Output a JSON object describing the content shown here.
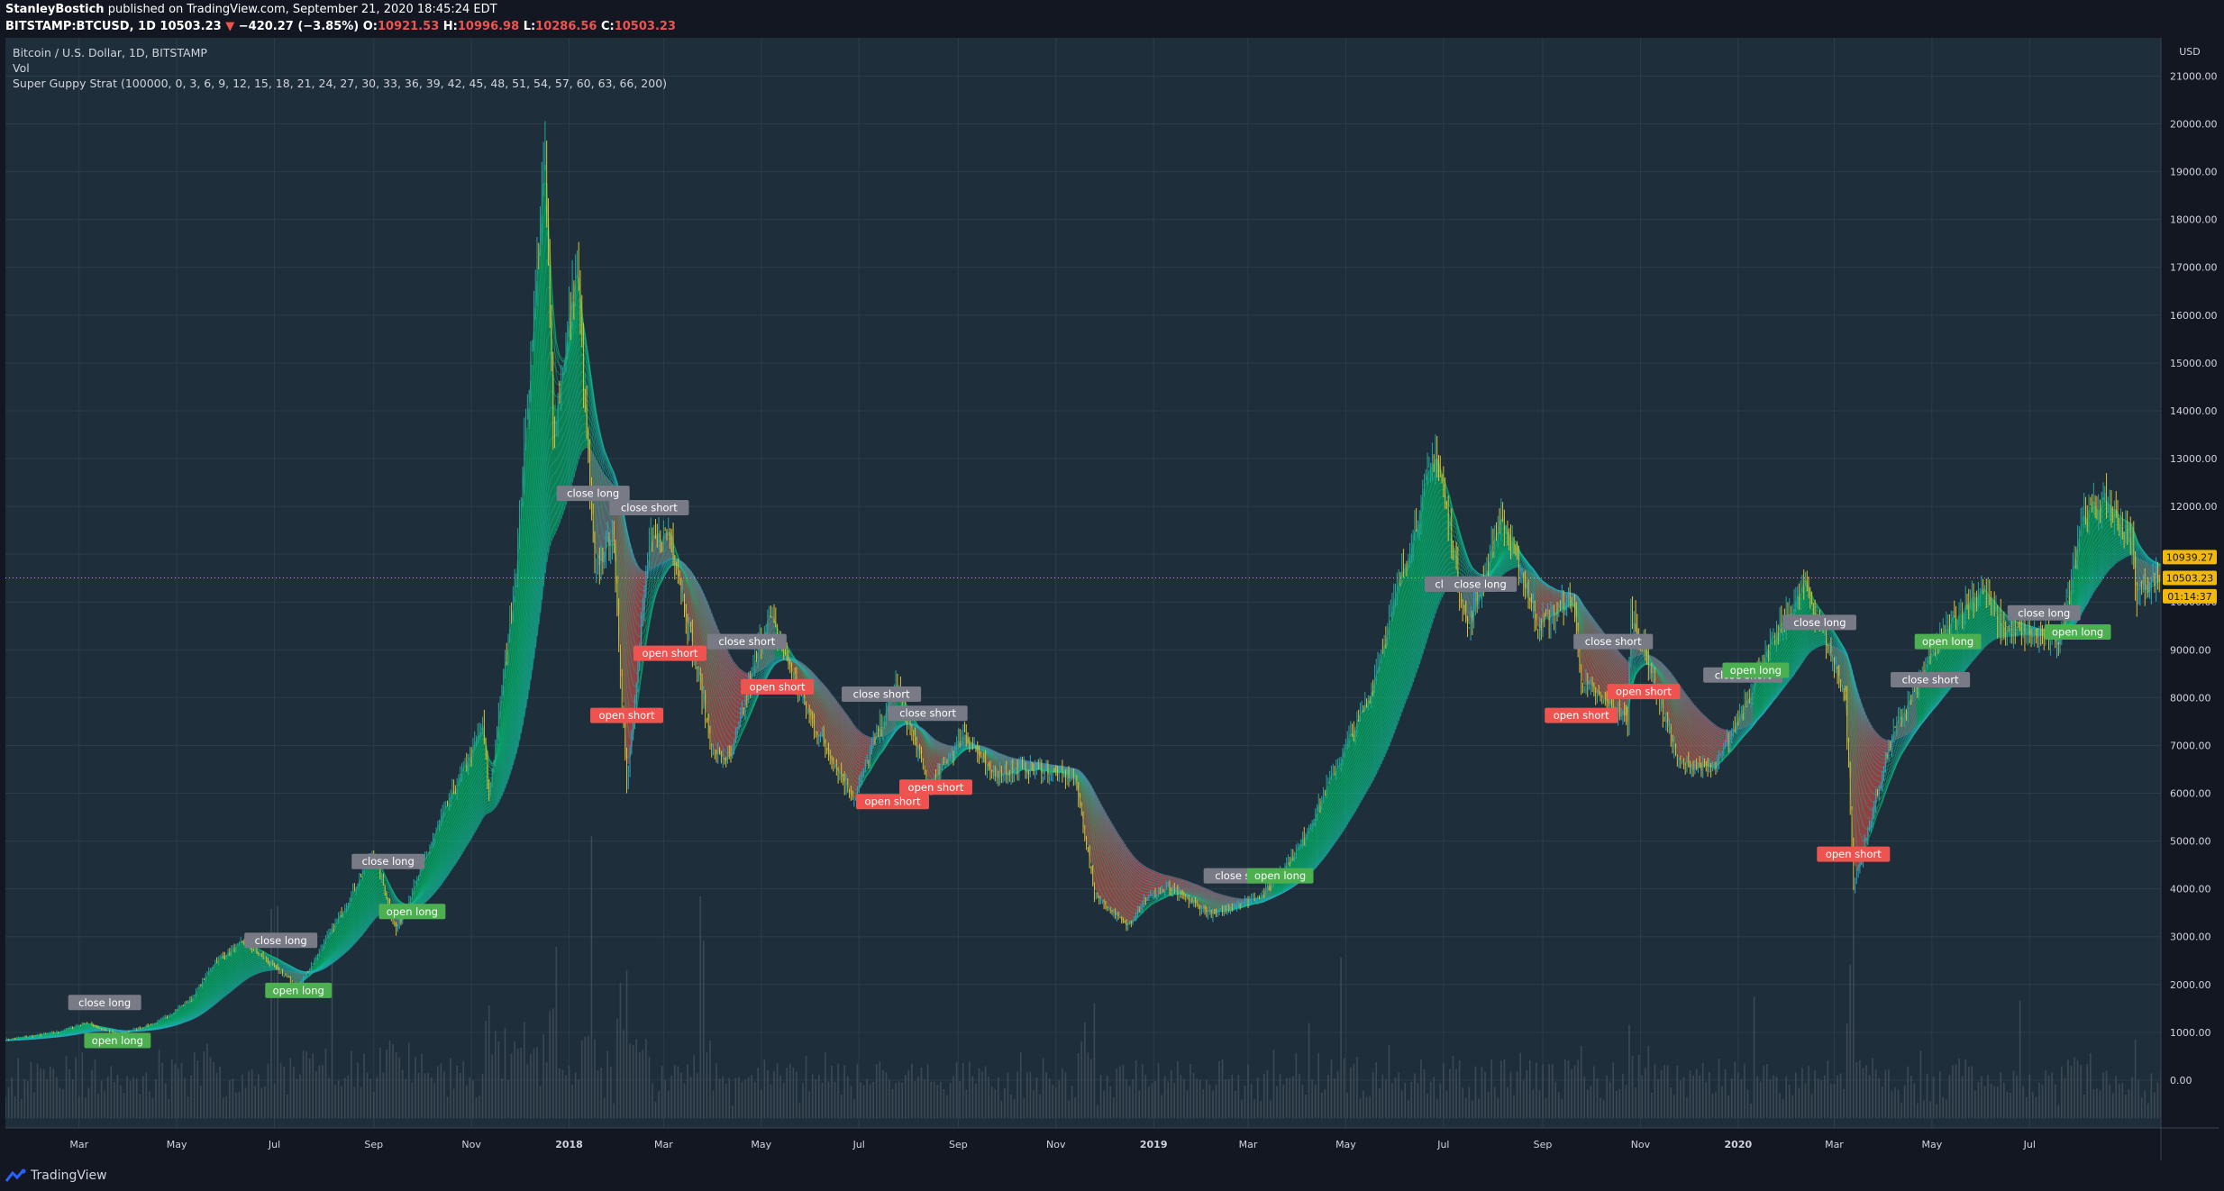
{
  "header": {
    "author": "StanleyBostich",
    "published": "published on TradingView.com, September 21, 2020 18:45:24 EDT",
    "symbol": "BITSTAMP:BTCUSD, 1D",
    "last": "10503.23",
    "change": "−420.27 (−3.85%)",
    "open_label": "O:",
    "open": "10921.53",
    "high_label": "H:",
    "high": "10996.98",
    "low_label": "L:",
    "low": "10286.56",
    "close_label": "C:",
    "close": "10503.23"
  },
  "legend": {
    "title": "Bitcoin / U.S. Dollar, 1D, BITSTAMP",
    "vol": "Vol",
    "strategy": "Super Guppy Strat (100000, 0, 3, 6, 9, 12, 15, 18, 21, 24, 27, 30, 33, 36, 39, 42, 45, 48, 51, 54, 57, 60, 63, 66, 200)"
  },
  "footer": {
    "brand": "TradingView"
  },
  "chart_data": {
    "type": "line",
    "currency_label": "USD",
    "price_ticks": [
      "21000.00",
      "20000.00",
      "19000.00",
      "18000.00",
      "17000.00",
      "16000.00",
      "15000.00",
      "14000.00",
      "13000.00",
      "12000.00",
      "11000.00",
      "10000.00",
      "9000.00",
      "8000.00",
      "7000.00",
      "6000.00",
      "5000.00",
      "4000.00",
      "3000.00",
      "2000.00",
      "1000.00",
      "0.00"
    ],
    "price_tick_values": [
      21000,
      20000,
      19000,
      18000,
      17000,
      16000,
      15000,
      14000,
      13000,
      12000,
      11000,
      10000,
      9000,
      8000,
      7000,
      6000,
      5000,
      4000,
      3000,
      2000,
      1000,
      0
    ],
    "time_ticks": [
      "Mar",
      "May",
      "Jul",
      "Sep",
      "Nov",
      "2018",
      "Mar",
      "May",
      "Jul",
      "Sep",
      "Nov",
      "2019",
      "Mar",
      "May",
      "Jul",
      "Sep",
      "Nov",
      "2020",
      "Mar",
      "May",
      "Jul"
    ],
    "time_tick_dates": [
      "2017-03-01",
      "2017-05-01",
      "2017-07-01",
      "2017-09-01",
      "2017-11-01",
      "2018-01-01",
      "2018-03-01",
      "2018-05-01",
      "2018-07-01",
      "2018-09-01",
      "2018-11-01",
      "2019-01-01",
      "2019-03-01",
      "2019-05-01",
      "2019-07-01",
      "2019-09-01",
      "2019-11-01",
      "2020-01-01",
      "2020-03-01",
      "2020-05-01",
      "2020-07-01"
    ],
    "x_range": [
      "2017-01-14",
      "2020-09-21"
    ],
    "y_range": [
      -1000,
      21800
    ],
    "price_points": [
      [
        "2017-01-15",
        850
      ],
      [
        "2017-02-15",
        1000
      ],
      [
        "2017-03-05",
        1200
      ],
      [
        "2017-03-25",
        950
      ],
      [
        "2017-04-20",
        1220
      ],
      [
        "2017-05-10",
        1700
      ],
      [
        "2017-05-25",
        2500
      ],
      [
        "2017-06-12",
        2900
      ],
      [
        "2017-07-16",
        1950
      ],
      [
        "2017-08-10",
        3400
      ],
      [
        "2017-09-01",
        4800
      ],
      [
        "2017-09-15",
        3100
      ],
      [
        "2017-10-12",
        5400
      ],
      [
        "2017-11-08",
        7400
      ],
      [
        "2017-11-12",
        5900
      ],
      [
        "2017-11-29",
        10800
      ],
      [
        "2017-12-17",
        19500
      ],
      [
        "2017-12-22",
        13500
      ],
      [
        "2018-01-06",
        17100
      ],
      [
        "2018-01-17",
        10500
      ],
      [
        "2018-01-28",
        11500
      ],
      [
        "2018-02-06",
        6200
      ],
      [
        "2018-02-20",
        11200
      ],
      [
        "2018-03-05",
        11500
      ],
      [
        "2018-04-01",
        6800
      ],
      [
        "2018-04-12",
        6700
      ],
      [
        "2018-05-05",
        9800
      ],
      [
        "2018-06-01",
        7500
      ],
      [
        "2018-06-28",
        5900
      ],
      [
        "2018-07-24",
        8300
      ],
      [
        "2018-08-14",
        6100
      ],
      [
        "2018-09-05",
        7300
      ],
      [
        "2018-09-20",
        6400
      ],
      [
        "2018-10-20",
        6500
      ],
      [
        "2018-11-13",
        6300
      ],
      [
        "2018-11-25",
        3900
      ],
      [
        "2018-12-15",
        3200
      ],
      [
        "2018-12-27",
        3800
      ],
      [
        "2019-01-10",
        4000
      ],
      [
        "2019-02-07",
        3450
      ],
      [
        "2019-03-10",
        3900
      ],
      [
        "2019-04-02",
        4900
      ],
      [
        "2019-05-15",
        8000
      ],
      [
        "2019-06-26",
        13200
      ],
      [
        "2019-07-16",
        9400
      ],
      [
        "2019-08-06",
        11800
      ],
      [
        "2019-08-29",
        9500
      ],
      [
        "2019-09-20",
        10100
      ],
      [
        "2019-09-25",
        8300
      ],
      [
        "2019-10-24",
        7500
      ],
      [
        "2019-10-26",
        9900
      ],
      [
        "2019-11-25",
        6600
      ],
      [
        "2019-12-18",
        6500
      ],
      [
        "2020-01-15",
        8700
      ],
      [
        "2020-02-12",
        10400
      ],
      [
        "2020-03-08",
        8000
      ],
      [
        "2020-03-12",
        4900
      ],
      [
        "2020-03-13",
        4000
      ],
      [
        "2020-04-06",
        7200
      ],
      [
        "2020-04-29",
        8800
      ],
      [
        "2020-05-15",
        9700
      ],
      [
        "2020-06-01",
        10300
      ],
      [
        "2020-06-15",
        9400
      ],
      [
        "2020-07-20",
        9200
      ],
      [
        "2020-08-02",
        11800
      ],
      [
        "2020-08-17",
        12100
      ],
      [
        "2020-09-03",
        11300
      ],
      [
        "2020-09-05",
        10200
      ],
      [
        "2020-09-21",
        10503
      ]
    ],
    "volume_baseline": 0,
    "current_price": {
      "value": 10503.23,
      "label": "10503.23",
      "color": "#f0b90b"
    },
    "price_flags": [
      {
        "value": 10939.27,
        "label": "10939.27",
        "color": "#f0b90b"
      },
      {
        "value": 10503.23,
        "label": "10503.23",
        "color": "#f0b90b"
      },
      {
        "value": 10120.0,
        "label": "01:14:37",
        "color": "#f0b90b"
      }
    ],
    "signals": [
      {
        "date": "2017-03-17",
        "price": 1350,
        "text": "close long",
        "kind": "close_long",
        "side": "above"
      },
      {
        "date": "2017-03-25",
        "price": 1100,
        "text": "open long",
        "kind": "open_long",
        "side": "below"
      },
      {
        "date": "2017-07-05",
        "price": 2650,
        "text": "close long",
        "kind": "close_long",
        "side": "above"
      },
      {
        "date": "2017-07-16",
        "price": 2150,
        "text": "open long",
        "kind": "open_long",
        "side": "below"
      },
      {
        "date": "2017-09-10",
        "price": 4300,
        "text": "close long",
        "kind": "close_long",
        "side": "above"
      },
      {
        "date": "2017-09-25",
        "price": 3800,
        "text": "open long",
        "kind": "open_long",
        "side": "below"
      },
      {
        "date": "2018-01-16",
        "price": 12000,
        "text": "close long",
        "kind": "close_long",
        "side": "above"
      },
      {
        "date": "2018-02-06",
        "price": 7900,
        "text": "open short",
        "kind": "open_short",
        "side": "below"
      },
      {
        "date": "2018-02-20",
        "price": 11700,
        "text": "close short",
        "kind": "close_short",
        "side": "above"
      },
      {
        "date": "2018-03-05",
        "price": 9200,
        "text": "open short",
        "kind": "open_short",
        "side": "below"
      },
      {
        "date": "2018-04-22",
        "price": 8900,
        "text": "close short",
        "kind": "close_short",
        "side": "above"
      },
      {
        "date": "2018-05-11",
        "price": 8500,
        "text": "open short",
        "kind": "open_short",
        "side": "below"
      },
      {
        "date": "2018-07-15",
        "price": 7800,
        "text": "close short",
        "kind": "close_short",
        "side": "above"
      },
      {
        "date": "2018-07-22",
        "price": 6100,
        "text": "open short",
        "kind": "open_short",
        "side": "below"
      },
      {
        "date": "2018-08-13",
        "price": 7400,
        "text": "close short",
        "kind": "close_short",
        "side": "above"
      },
      {
        "date": "2018-08-18",
        "price": 6400,
        "text": "open short",
        "kind": "open_short",
        "side": "below"
      },
      {
        "date": "2019-02-26",
        "price": 4000,
        "text": "close short",
        "kind": "close_short",
        "side": "above"
      },
      {
        "date": "2019-03-21",
        "price": 4000,
        "text": "open long",
        "kind": "open_long",
        "side": "above"
      },
      {
        "date": "2019-07-12",
        "price": 10100,
        "text": "close long",
        "kind": "close_long",
        "side": "above"
      },
      {
        "date": "2019-07-24",
        "price": 10100,
        "text": "close long",
        "kind": "close_long",
        "side": "above"
      },
      {
        "date": "2019-10-15",
        "price": 8900,
        "text": "close short",
        "kind": "close_short",
        "side": "above"
      },
      {
        "date": "2019-09-25",
        "price": 7900,
        "text": "open short",
        "kind": "open_short",
        "side": "below"
      },
      {
        "date": "2019-11-03",
        "price": 8400,
        "text": "open short",
        "kind": "open_short",
        "side": "below"
      },
      {
        "date": "2020-01-04",
        "price": 8200,
        "text": "close short",
        "kind": "close_short",
        "side": "above"
      },
      {
        "date": "2020-01-12",
        "price": 8300,
        "text": "open long",
        "kind": "open_long",
        "side": "above"
      },
      {
        "date": "2020-02-21",
        "price": 9300,
        "text": "close long",
        "kind": "close_long",
        "side": "above"
      },
      {
        "date": "2020-03-13",
        "price": 5000,
        "text": "open short",
        "kind": "open_short",
        "side": "below"
      },
      {
        "date": "2020-04-30",
        "price": 8100,
        "text": "close short",
        "kind": "close_short",
        "side": "above"
      },
      {
        "date": "2020-05-11",
        "price": 8900,
        "text": "open long",
        "kind": "open_long",
        "side": "above"
      },
      {
        "date": "2020-07-10",
        "price": 9500,
        "text": "close long",
        "kind": "close_long",
        "side": "above"
      },
      {
        "date": "2020-07-31",
        "price": 9100,
        "text": "open long",
        "kind": "open_long",
        "side": "above"
      }
    ],
    "colors": {
      "background": "#1e2e3a",
      "grid": "#2c3d49",
      "candle_up": "#26a69a",
      "candle_down": "#e0c030",
      "volume": "#4a5560",
      "band_bull_fast": "#00c46a",
      "band_bull_slow": "#2aa9c8",
      "band_bear_fast": "#e8a020",
      "band_bear_slow": "#ef5350",
      "band_neutral": "#8a8e96",
      "label_close": "#787b86",
      "label_open_long": "#4caf50",
      "label_open_short": "#ef5350",
      "axis_text": "#d1d4dc"
    }
  }
}
